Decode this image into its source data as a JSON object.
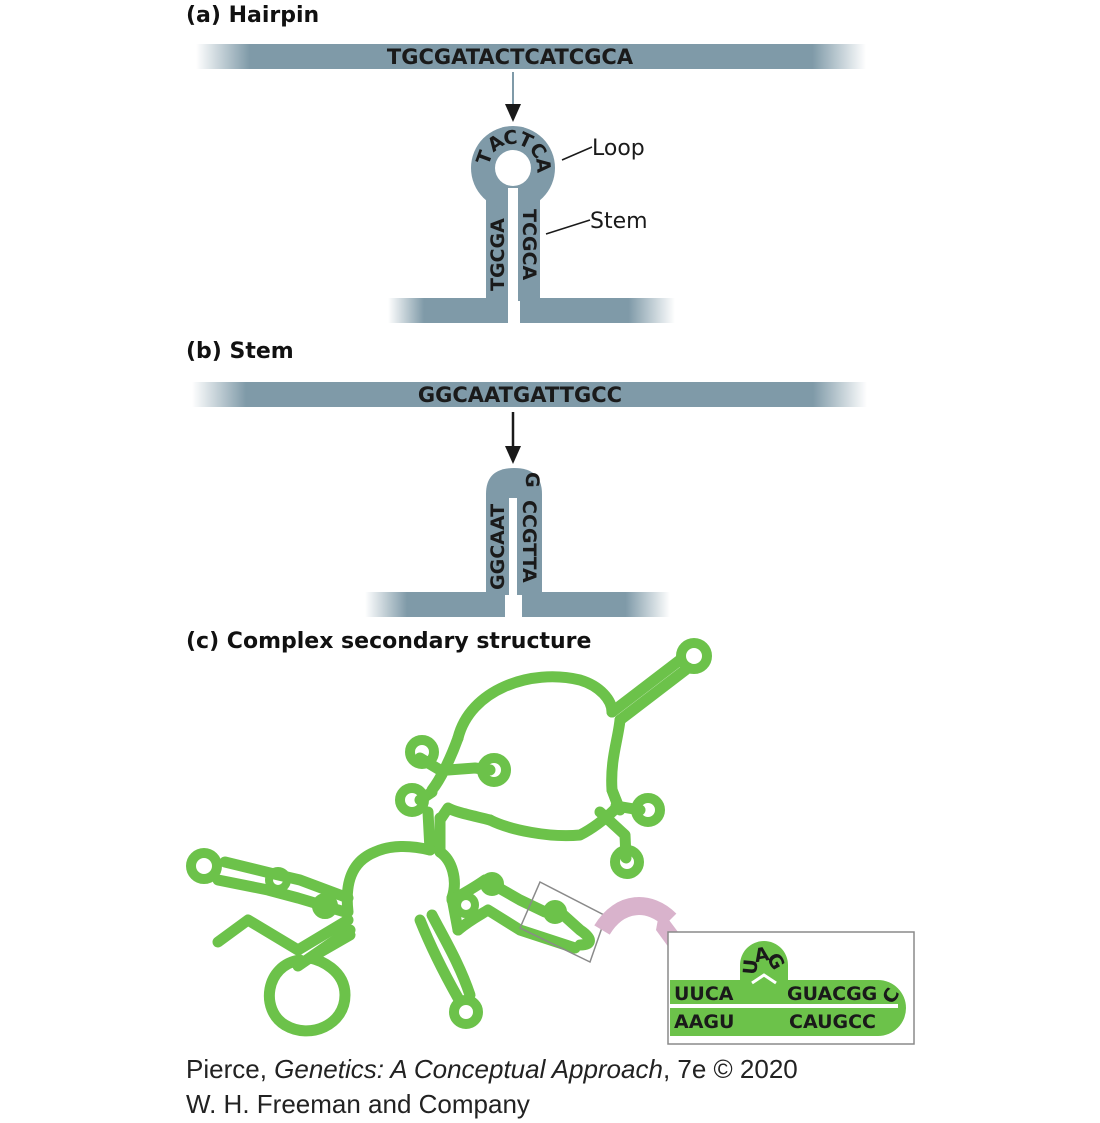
{
  "panels": {
    "a": {
      "title": "(a) Hairpin",
      "sequence": "TGCGATACTCATCGCA",
      "loop_label": "Loop",
      "stem_label": "Stem",
      "stem_left": "TGCGA",
      "stem_right": "TCGCA",
      "loop_letters": [
        "T",
        "A",
        "C",
        "T",
        "C",
        "A"
      ]
    },
    "b": {
      "title": "(b) Stem",
      "sequence": "GGCAATGATTGCC",
      "stem_left": "GGCAAT",
      "stem_right": "CCGTTA",
      "top_letter": "G"
    },
    "c": {
      "title": "(c) Complex secondary structure",
      "inset": {
        "top_left": "UUCA",
        "bottom_left": "AAGU",
        "bulge_letters": [
          "U",
          "A",
          "G"
        ],
        "top_right": "GUACGG",
        "bottom_right": "CAUGCC",
        "end_letter": "C"
      }
    }
  },
  "credit": {
    "author": "Pierce, ",
    "book": "Genetics: A Conceptual Approach",
    "edition": ", 7e © 2020",
    "publisher": "W. H. Freeman and Company"
  },
  "colors": {
    "dna": "#7f9aa8",
    "rna": "#6cc24a",
    "arrow": "#d9b3cc",
    "text": "#1a1a1a"
  }
}
